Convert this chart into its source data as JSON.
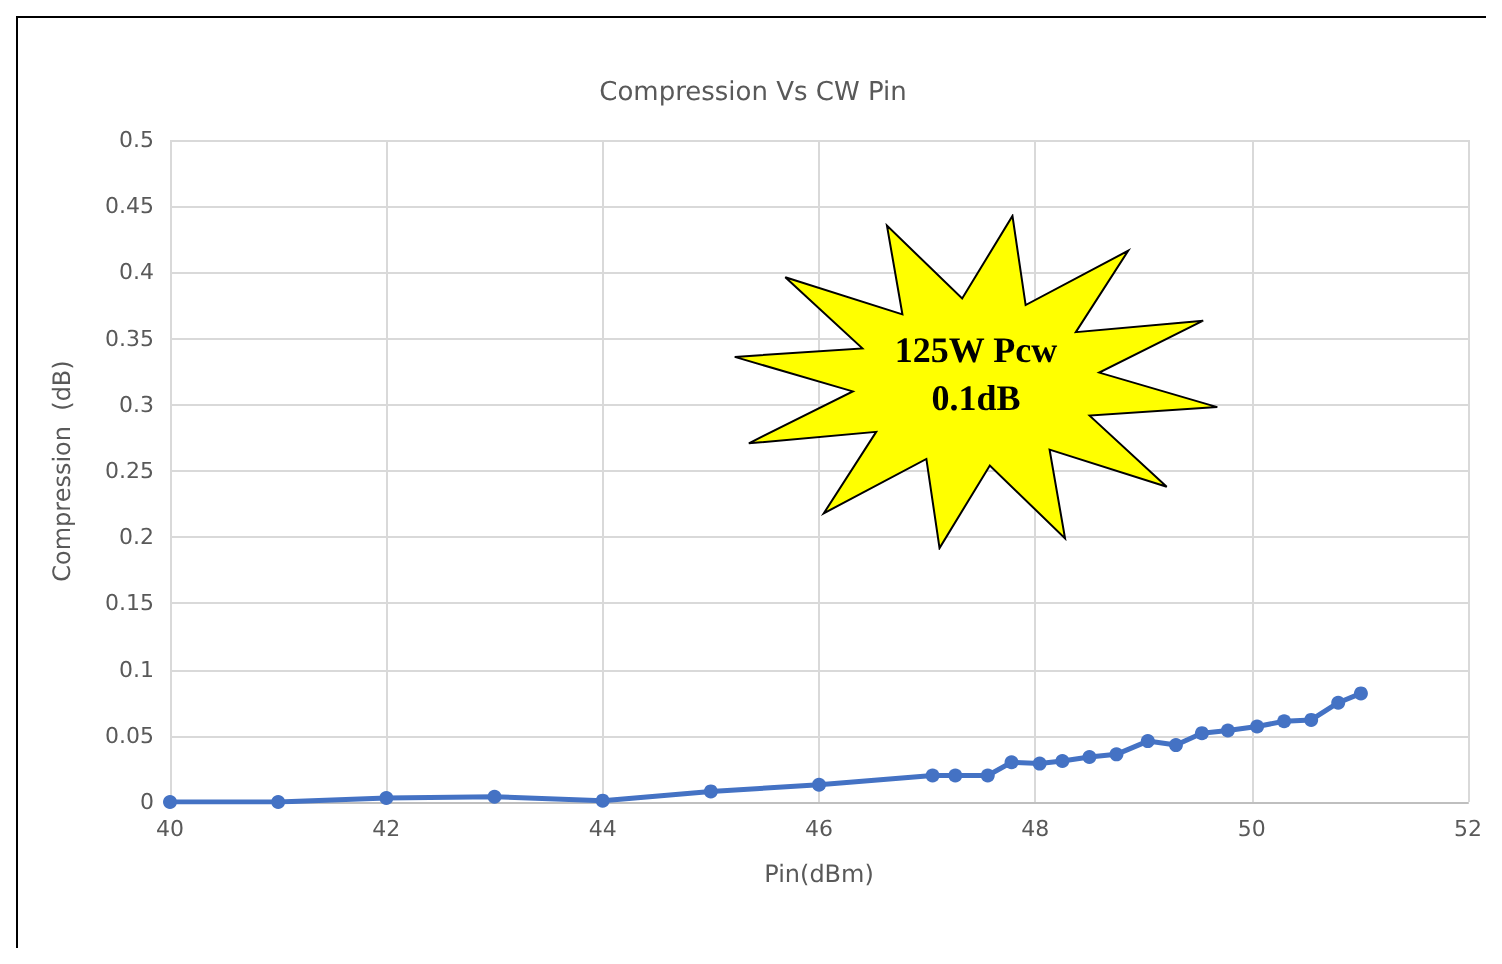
{
  "chart_data": {
    "type": "line",
    "title": "Compression Vs CW Pin",
    "xlabel": "Pin(dBm)",
    "ylabel": "Compression  (dB)",
    "annotations": [
      "125W Pcw 0.1dB"
    ],
    "x": [
      40,
      41,
      42,
      43,
      44,
      45,
      46,
      47.05,
      47.26,
      47.56,
      47.78,
      48.04,
      48.25,
      48.5,
      48.75,
      49.04,
      49.3,
      49.54,
      49.78,
      50.05,
      50.3,
      50.55,
      50.8,
      51.01
    ],
    "series": [
      {
        "color": "#4472c4",
        "values": [
          0,
          0,
          0.003,
          0.004,
          0.001,
          0.008,
          0.013,
          0.02,
          0.02,
          0.02,
          0.03,
          0.029,
          0.031,
          0.034,
          0.036,
          0.046,
          0.043,
          0.052,
          0.054,
          0.057,
          0.061,
          0.062,
          0.075,
          0.082
        ]
      }
    ],
    "xlim": [
      40,
      52
    ],
    "xticks": [
      40,
      42,
      44,
      46,
      48,
      50,
      52
    ],
    "ylim": [
      0,
      0.5
    ],
    "yticks": [
      0,
      0.05,
      0.1,
      0.15,
      0.2,
      0.25,
      0.3,
      0.35,
      0.4,
      0.45,
      0.5
    ],
    "grid": true,
    "marker": "circle",
    "line_style": "solid"
  }
}
